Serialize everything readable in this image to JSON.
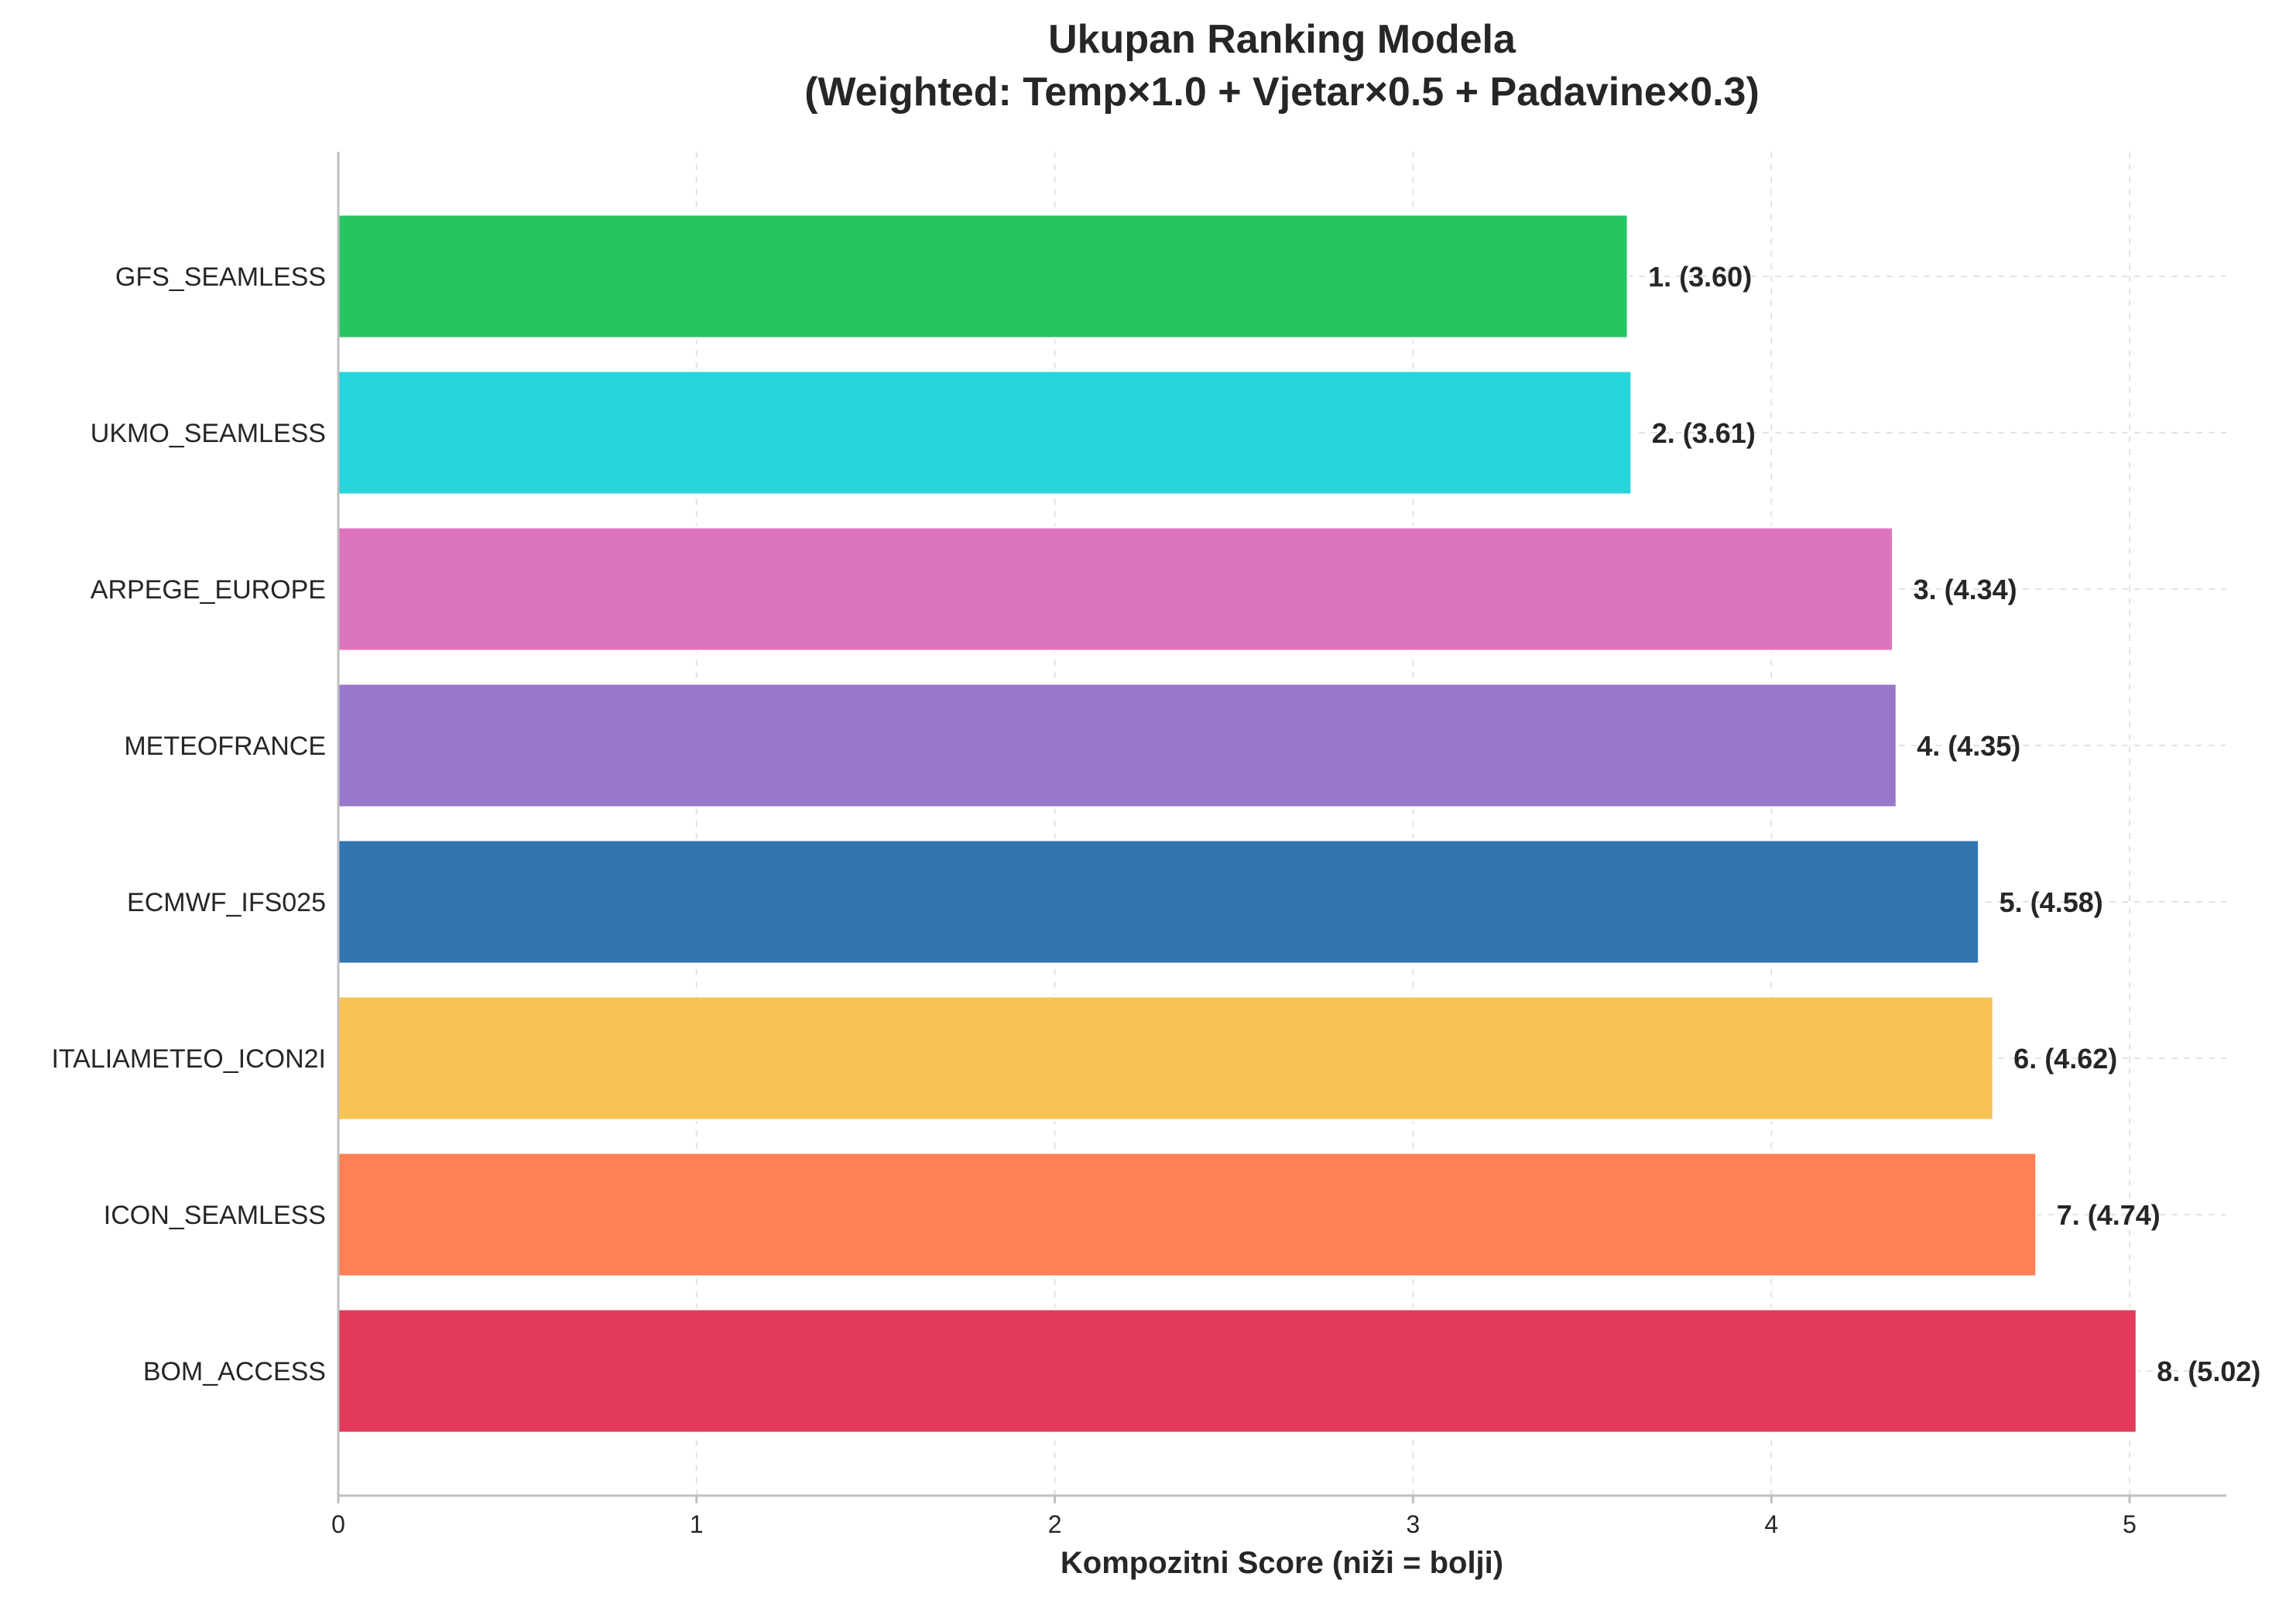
{
  "chart_data": {
    "type": "bar",
    "orientation": "horizontal",
    "title_line1": "Ukupan Ranking Modela",
    "title_line2": "(Weighted: Temp×1.0 + Vjetar×0.5 + Padavine×0.3)",
    "xlabel": "Kompozitni Score (niži = bolji)",
    "ylabel": "",
    "xlim": [
      0,
      5.27
    ],
    "xticks": [
      0,
      1,
      2,
      3,
      4,
      5
    ],
    "grid": true,
    "categories": [
      "GFS_SEAMLESS",
      "UKMO_SEAMLESS",
      "ARPEGE_EUROPE",
      "METEOFRANCE",
      "ECMWF_IFS025",
      "ITALIAMETEO_ICON2I",
      "ICON_SEAMLESS",
      "BOM_ACCESS"
    ],
    "values": [
      3.6,
      3.61,
      4.34,
      4.35,
      4.58,
      4.62,
      4.74,
      5.02
    ],
    "value_labels": [
      "1. (3.60)",
      "2. (3.61)",
      "3. (4.34)",
      "4. (4.35)",
      "5. (4.58)",
      "6. (4.62)",
      "7. (4.74)",
      "8. (5.02)"
    ],
    "colors": [
      "#27c462",
      "#27d5da",
      "#dc75bd",
      "#9778cb",
      "#3175b1",
      "#f8c354",
      "#ff8054",
      "#e13a5a"
    ]
  }
}
